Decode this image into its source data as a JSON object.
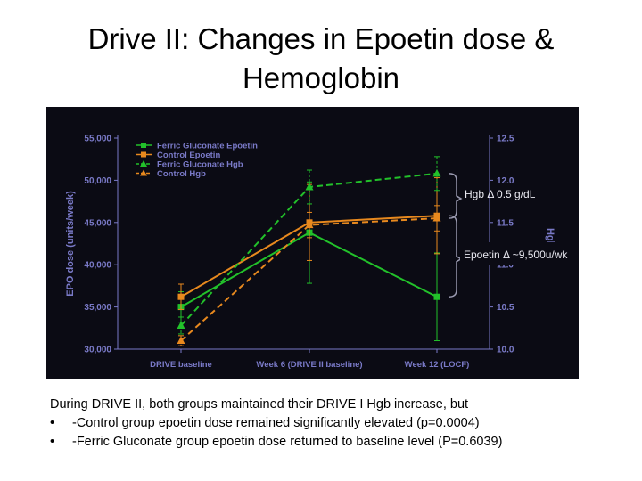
{
  "slide": {
    "title_line1": "Drive II: Changes in Epoetin dose &",
    "title_line2": "Hemoglobin",
    "caption": "During DRIVE II, both groups maintained their DRIVE I Hgb increase, but",
    "bullets": [
      "-Control group epoetin dose remained significantly elevated (p=0.0004)",
      "-Ferric Gluconate group epoetin dose returned to baseline level (P=0.6039)"
    ],
    "bullet_symbol": "•"
  },
  "colors": {
    "background": "#0b0b14",
    "ferric": "#22c12a",
    "control": "#e8891e",
    "axis_text": "#7a7ac8",
    "annotation": "#e8e8f0",
    "bracket": "#9a9ab0"
  },
  "chart_data": {
    "type": "line",
    "title": "",
    "categories": [
      "DRIVE baseline",
      "Week 6 (DRIVE II baseline)",
      "Week 12 (LOCF)"
    ],
    "ylabel_left": "EPO dose (units/week)",
    "ylabel_right": "Hgb (",
    "yticks_left": [
      "55,000",
      "50,000",
      "45,000",
      "40,000",
      "35,000",
      "30,000"
    ],
    "yticks_right": [
      "12.5",
      "12.0",
      "11.5",
      "11.0",
      "10.5",
      "10.0"
    ],
    "ylim_left": [
      30000,
      55000
    ],
    "ylim_right": [
      10.0,
      12.5
    ],
    "legend_position": "top-left",
    "series": [
      {
        "name": "Ferric Gluconate Epoetin",
        "axis": "left",
        "style": "solid",
        "marker": "square",
        "color": "#22c12a",
        "values": [
          35000,
          43800,
          36200
        ],
        "error": [
          1800,
          6000,
          5200
        ]
      },
      {
        "name": "Control Epoetin",
        "axis": "left",
        "style": "solid",
        "marker": "square",
        "color": "#e8891e",
        "values": [
          36200,
          45000,
          45800
        ],
        "error": [
          1500,
          4500,
          4500
        ]
      },
      {
        "name": "Ferric Gluconate Hgb",
        "axis": "right",
        "style": "dashed",
        "marker": "triangle",
        "color": "#22c12a",
        "values": [
          10.28,
          11.92,
          12.08
        ],
        "error": [
          0.1,
          0.2,
          0.2
        ]
      },
      {
        "name": "Control Hgb",
        "axis": "right",
        "style": "dashed",
        "marker": "triangle",
        "color": "#e8891e",
        "values": [
          10.1,
          11.47,
          11.55
        ],
        "error": [
          0.06,
          0.15,
          0.15
        ]
      }
    ],
    "annotations": [
      {
        "text": "Hgb Δ 0.5 g/dL"
      },
      {
        "text": "Epoetin Δ ~9,500u/wk"
      }
    ]
  }
}
